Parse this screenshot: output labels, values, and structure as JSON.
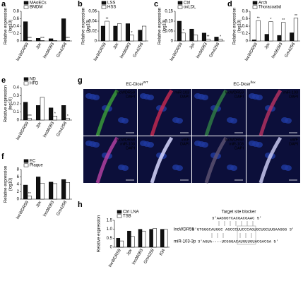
{
  "panel_labels": [
    "a",
    "b",
    "c",
    "d",
    "e",
    "g",
    "f",
    "h"
  ],
  "chart_data": [
    {
      "type": "bar",
      "ylabel": "Relative expression",
      "ylabel2": "(log10)",
      "categories": [
        "lncWDR59",
        "Jpx",
        "lnc06083",
        "Gm4258"
      ],
      "series": [
        {
          "name": "MAoECs",
          "color": "#111111",
          "values": [
            0.52,
            0.07,
            0.06,
            0.6
          ]
        },
        {
          "name": "BMDM",
          "color": "#ffffff",
          "values": [
            0.01,
            0.01,
            0.01,
            0.01
          ]
        }
      ],
      "ylim": [
        0,
        0.8
      ],
      "yticks": [
        0,
        0.2,
        0.4,
        0.6,
        0.8
      ],
      "annotations": [
        {
          "text": "***",
          "series": 1,
          "index": 0
        },
        {
          "text": "***",
          "series": 1,
          "index": 1
        },
        {
          "text": "***",
          "series": 1,
          "index": 3
        }
      ]
    },
    {
      "type": "bar",
      "ylabel": "Relative expression",
      "ylabel2": "(log10)",
      "categories": [
        "lncWDR59",
        "Jpx",
        "lnc06083",
        "Gm4258"
      ],
      "series": [
        {
          "name": "LSS",
          "color": "#111111",
          "values": [
            0.03,
            0.03,
            0.035,
            0.022
          ]
        },
        {
          "name": "HSS",
          "color": "#ffffff",
          "values": [
            0.04,
            0.035,
            0.012,
            0.03
          ]
        }
      ],
      "ylim": [
        0,
        0.06
      ],
      "yticks": [
        0,
        0.02,
        0.04,
        0.06
      ],
      "annotations": [
        {
          "text": "**",
          "series": 1,
          "index": 0
        },
        {
          "text": "*",
          "series": 1,
          "index": 2
        }
      ]
    },
    {
      "type": "bar",
      "ylabel": "Relative expression",
      "ylabel2": "(log10)",
      "categories": [
        "lncWDR59",
        "Jpx",
        "lnc06083",
        "Gm4258"
      ],
      "series": [
        {
          "name": "Ctrl",
          "color": "#111111",
          "values": [
            0.1,
            0.06,
            0.04,
            0.02
          ]
        },
        {
          "name": "oxLDL",
          "color": "#ffffff",
          "values": [
            0.04,
            0.03,
            0.01,
            0.01
          ]
        }
      ],
      "ylim": [
        0,
        0.15
      ],
      "yticks": [
        0,
        {
          "value": 0.05,
          "label": "0.05"
        },
        {
          "value": 0.1,
          "label": "0.10"
        },
        0.15
      ],
      "annotations": [
        {
          "text": "*",
          "series": 1,
          "index": 0
        },
        {
          "text": "**",
          "series": 1,
          "index": 2
        },
        {
          "text": "*",
          "series": 1,
          "index": 3
        }
      ]
    },
    {
      "type": "bar",
      "ylabel": "Relative expression",
      "ylabel2": "(log10)",
      "categories": [
        "lncWDR59",
        "Jpx",
        "lnc06083",
        "Gm4258"
      ],
      "series": [
        {
          "name": "Arch",
          "color": "#111111",
          "values": [
            0.03,
            0.18,
            0.15,
            0.22
          ]
        },
        {
          "name": "Thoracoabd",
          "color": "#ffffff",
          "values": [
            0.55,
            0.52,
            0.5,
            0.62
          ]
        }
      ],
      "ylim": [
        0,
        0.8
      ],
      "yticks": [
        0,
        0.2,
        0.4,
        0.6,
        0.8
      ],
      "annotations": [
        {
          "text": "**",
          "series": 1,
          "index": 0
        },
        {
          "text": "*",
          "series": 1,
          "index": 1
        },
        {
          "text": "**",
          "series": 1,
          "index": 2
        },
        {
          "text": "**",
          "series": 1,
          "index": 3
        }
      ]
    },
    {
      "type": "bar",
      "ylabel": "Relative expression",
      "ylabel2": "(log10)",
      "categories": [
        "lncWDR59",
        "Jpx",
        "lnc06083",
        "Gm4258"
      ],
      "series": [
        {
          "name": "ND",
          "color": "#111111",
          "values": [
            0.22,
            0.18,
            0.15,
            0.18
          ]
        },
        {
          "name": "HFD",
          "color": "#ffffff",
          "values": [
            0.02,
            0.28,
            0.05,
            0.02
          ]
        }
      ],
      "ylim": [
        0,
        0.4
      ],
      "yticks": [
        0,
        0.1,
        0.2,
        0.3,
        0.4
      ],
      "annotations": [
        {
          "text": "***",
          "series": 1,
          "index": 0
        },
        {
          "text": "*",
          "series": 1,
          "index": 2
        },
        {
          "text": "*",
          "series": 1,
          "index": 3
        }
      ]
    },
    {
      "type": "bar",
      "ylabel": "Relative expression",
      "ylabel2": "(log10)",
      "categories": [
        "lncWDR59",
        "Jpx",
        "lnc06083",
        "Gm4258"
      ],
      "series": [
        {
          "name": "EC",
          "color": "#111111",
          "values": [
            3.8,
            6.0,
            4.6,
            5.3
          ]
        },
        {
          "name": "Plaque",
          "color": "#ffffff",
          "values": [
            0.8,
            4.3,
            4.2,
            4.5
          ]
        }
      ],
      "ylim": [
        0,
        8
      ],
      "yticks": [
        0,
        2,
        4,
        6,
        8
      ],
      "annotations": [
        {
          "text": "**",
          "series": 1,
          "index": 0
        }
      ]
    },
    {
      "type": "bar",
      "ylabel": "Relative expression",
      "categories": [
        "lncWDR59",
        "Jpx",
        "lnc06083",
        "Gm4258",
        "Il34"
      ],
      "series": [
        {
          "name": "Ctrl LNA",
          "color": "#111111",
          "values": [
            0.5,
            0.9,
            1.0,
            1.0,
            1.0
          ]
        },
        {
          "name": "TSB",
          "color": "#ffffff",
          "values": [
            0.35,
            0.6,
            0.9,
            1.05,
            1.0
          ]
        }
      ],
      "ylim": [
        0,
        1.5
      ],
      "yticks": [
        0,
        0.5,
        {
          "value": 1,
          "label": "1.0"
        },
        1.5
      ],
      "annotations": []
    }
  ],
  "image_panel": {
    "headers": [
      {
        "text": "EC-Dicer",
        "sup": "WT"
      },
      {
        "text": "EC-Dicer",
        "sup": "flox"
      }
    ],
    "tiles": [
      [
        {
          "text": "lncWDR59",
          "color": "#3fdc3f"
        },
        {
          "text": "DAPI",
          "color": "#6fa0ff"
        }
      ],
      [
        {
          "text": "miR-103",
          "color": "#ff4040"
        },
        {
          "text": "DAPI",
          "color": "#6fa0ff"
        }
      ],
      [
        {
          "text": "lncWDR59",
          "color": "#3fdc3f"
        },
        {
          "text": "DAPI",
          "color": "#6fa0ff"
        }
      ],
      [
        {
          "text": "miR-103",
          "color": "#ff4040"
        },
        {
          "text": "DAPI",
          "color": "#6fa0ff"
        }
      ],
      [
        {
          "text": "lncWDR59",
          "color": "#3fdc3f"
        },
        {
          "text": "miR-103",
          "color": "#ff4040"
        },
        {
          "text": "DAPI",
          "color": "#6fa0ff"
        }
      ],
      [
        {
          "text": "vWF",
          "color": "#ffffff"
        },
        {
          "text": "DAPI",
          "color": "#6fa0ff"
        }
      ],
      [
        {
          "text": "lncWDR59",
          "color": "#3fdc3f"
        },
        {
          "text": "miR-103",
          "color": "#ff4040"
        },
        {
          "text": "DAPI",
          "color": "#6fa0ff"
        }
      ],
      [
        {
          "text": "vWF",
          "color": "#ffffff"
        },
        {
          "text": "DAPI",
          "color": "#6fa0ff"
        }
      ]
    ]
  },
  "sequence": {
    "title": "Target site blocker",
    "blocker": "3'AAGGGTCACGACGAAC 5'",
    "lnc_name": "lncWDR59",
    "lnc_seq": "5'GTGGGCAUGGC AGCCCUUCCCAGUGCUGCUUGAAGGG 3'",
    "mir_name": "miR-103-3p",
    "mir_seq": "3'AGUA----UCGGGACAUGUUGUACGACGA 5'"
  }
}
